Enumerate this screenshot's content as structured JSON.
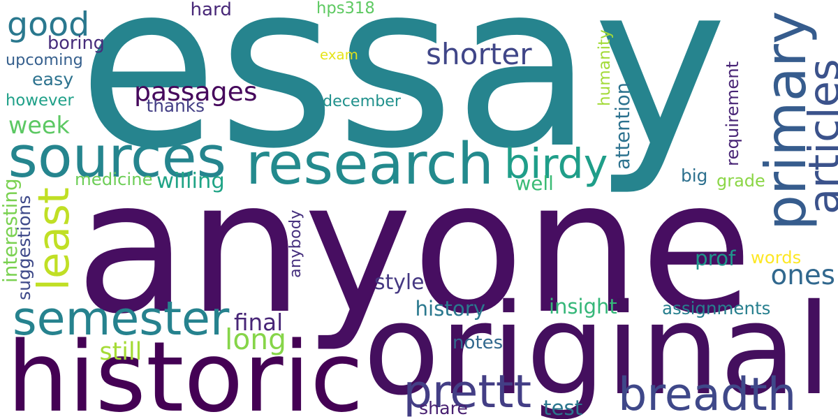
{
  "words": [
    {
      "text": "essay",
      "color": "#26848e",
      "vertical": false
    },
    {
      "text": "anyone",
      "color": "#470e61",
      "vertical": false
    },
    {
      "text": "original",
      "color": "#440f5e",
      "vertical": false
    },
    {
      "text": "historic",
      "color": "#440154",
      "vertical": false
    },
    {
      "text": "research",
      "color": "#238a8d",
      "vertical": false
    },
    {
      "text": "sources",
      "color": "#25858e",
      "vertical": false
    },
    {
      "text": "semester",
      "color": "#26828e",
      "vertical": false
    },
    {
      "text": "breadth",
      "color": "#3f4889",
      "vertical": false
    },
    {
      "text": "primary",
      "color": "#365c8d",
      "vertical": true
    },
    {
      "text": "articles",
      "color": "#3b528b",
      "vertical": true
    },
    {
      "text": "good",
      "color": "#2a788e",
      "vertical": false
    },
    {
      "text": "birdy",
      "color": "#1f9e89",
      "vertical": false
    },
    {
      "text": "prettt",
      "color": "#433e85",
      "vertical": false
    },
    {
      "text": "least",
      "color": "#c0df25",
      "vertical": true
    },
    {
      "text": "passages",
      "color": "#46085c",
      "vertical": false
    },
    {
      "text": "shorter",
      "color": "#404688",
      "vertical": false
    },
    {
      "text": "long",
      "color": "#86d549",
      "vertical": false
    },
    {
      "text": "ones",
      "color": "#31688e",
      "vertical": false
    },
    {
      "text": "week",
      "color": "#5cc863",
      "vertical": false
    },
    {
      "text": "hard",
      "color": "#482878",
      "vertical": false
    },
    {
      "text": "hps318",
      "color": "#5ec962",
      "vertical": false
    },
    {
      "text": "boring",
      "color": "#472d7b",
      "vertical": false
    },
    {
      "text": "upcoming",
      "color": "#355f8d",
      "vertical": false
    },
    {
      "text": "easy",
      "color": "#2c728e",
      "vertical": false
    },
    {
      "text": "however",
      "color": "#1fa088",
      "vertical": false
    },
    {
      "text": "thanks",
      "color": "#433e85",
      "vertical": false
    },
    {
      "text": "exam",
      "color": "#e5e419",
      "vertical": false
    },
    {
      "text": "december",
      "color": "#21918c",
      "vertical": false
    },
    {
      "text": "humanity",
      "color": "#a2da37",
      "vertical": true
    },
    {
      "text": "attention",
      "color": "#2c728e",
      "vertical": true
    },
    {
      "text": "requirement",
      "color": "#482475",
      "vertical": true
    },
    {
      "text": "medicine",
      "color": "#6ece58",
      "vertical": false
    },
    {
      "text": "willing",
      "color": "#20a486",
      "vertical": false
    },
    {
      "text": "well",
      "color": "#3bbb75",
      "vertical": false
    },
    {
      "text": "big",
      "color": "#2d708e",
      "vertical": false
    },
    {
      "text": "grade",
      "color": "#8bd646",
      "vertical": false
    },
    {
      "text": "interesting",
      "color": "#7ad151",
      "vertical": true
    },
    {
      "text": "suggestions",
      "color": "#3e4989",
      "vertical": true
    },
    {
      "text": "anybody",
      "color": "#46307e",
      "vertical": true
    },
    {
      "text": "prof",
      "color": "#1f968b",
      "vertical": false
    },
    {
      "text": "words",
      "color": "#fde725",
      "vertical": false
    },
    {
      "text": "style",
      "color": "#453882",
      "vertical": false
    },
    {
      "text": "history",
      "color": "#2a788e",
      "vertical": false
    },
    {
      "text": "insight",
      "color": "#35b779",
      "vertical": false
    },
    {
      "text": "assignments",
      "color": "#277f8e",
      "vertical": false
    },
    {
      "text": "final",
      "color": "#482677",
      "vertical": false
    },
    {
      "text": "still",
      "color": "#a5db36",
      "vertical": false
    },
    {
      "text": "notes",
      "color": "#31688e",
      "vertical": false
    },
    {
      "text": "share",
      "color": "#482071",
      "vertical": false
    },
    {
      "text": "test",
      "color": "#2a768e",
      "vertical": false
    }
  ]
}
